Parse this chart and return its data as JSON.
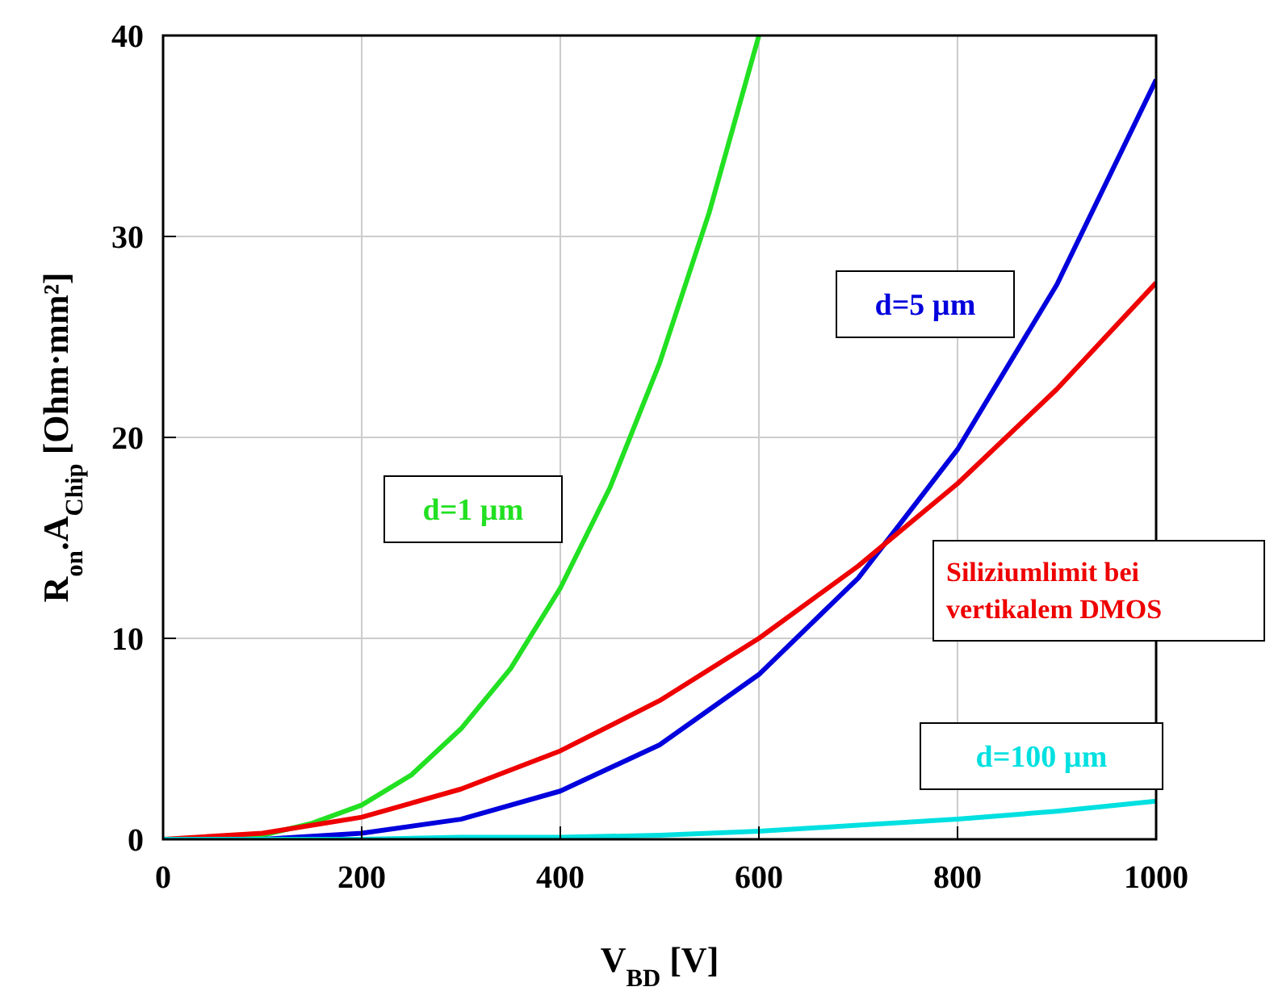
{
  "chart_data": {
    "type": "line",
    "xlabel": "V$_{BD}$ [V]",
    "ylabel": "R$_{on}$.A$_{Chip}$ [Ohm·mm²]",
    "xlim": [
      0,
      1000
    ],
    "ylim": [
      0,
      40
    ],
    "xticks": [
      0,
      200,
      400,
      600,
      800,
      1000
    ],
    "yticks": [
      0,
      10,
      20,
      30,
      40
    ],
    "grid": true,
    "marker": "none",
    "line_style": "solid",
    "series": [
      {
        "name": "d=1 µm",
        "color": "#22e022",
        "x": [
          0,
          50,
          100,
          150,
          200,
          250,
          300,
          350,
          400,
          450,
          500,
          550,
          600
        ],
        "values": [
          0,
          0,
          0.2,
          0.8,
          1.7,
          3.2,
          5.5,
          8.5,
          12.5,
          17.5,
          23.7,
          31.2,
          40
        ]
      },
      {
        "name": "d=5 µm",
        "color": "#0000dd",
        "x": [
          0,
          100,
          200,
          300,
          400,
          500,
          600,
          700,
          800,
          900,
          1000
        ],
        "values": [
          0,
          0,
          0.3,
          1.0,
          2.4,
          4.7,
          8.2,
          13.0,
          19.4,
          27.6,
          37.8
        ]
      },
      {
        "name": "Siliziumlimit bei vertikalem DMOS",
        "color": "#ee0000",
        "x": [
          0,
          100,
          200,
          300,
          400,
          500,
          600,
          700,
          800,
          900,
          1000
        ],
        "values": [
          0,
          0.3,
          1.1,
          2.5,
          4.4,
          6.9,
          10.0,
          13.6,
          17.7,
          22.4,
          27.7
        ]
      },
      {
        "name": "d=100 µm",
        "color": "#00e0e0",
        "x": [
          0,
          100,
          200,
          300,
          400,
          500,
          600,
          700,
          800,
          900,
          1000
        ],
        "values": [
          0,
          0,
          0,
          0.1,
          0.1,
          0.2,
          0.4,
          0.7,
          1.0,
          1.4,
          1.9
        ]
      }
    ]
  }
}
